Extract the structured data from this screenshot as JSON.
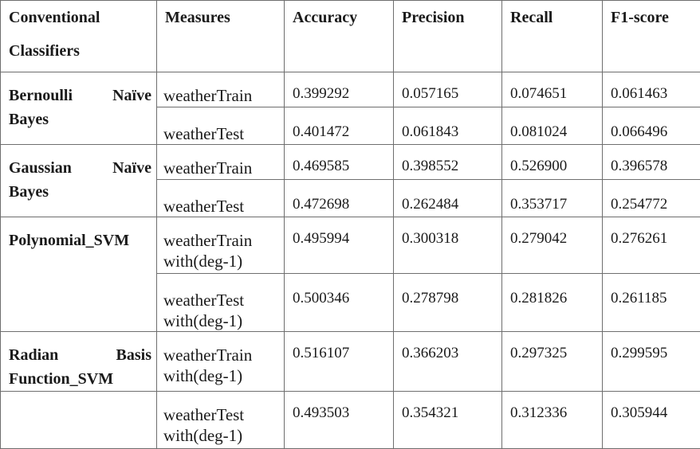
{
  "table": {
    "headers": {
      "classifier": "Conventional Classifiers",
      "classifier_line1": "Conventional",
      "classifier_line2": "Classifiers",
      "measures": "Measures",
      "accuracy": "Accuracy",
      "precision": "Precision",
      "recall": "Recall",
      "f1": "F1-score"
    },
    "groups": [
      {
        "classifier_line1": "Bernoulli Naïve",
        "classifier_word_a": "Bernoulli",
        "classifier_word_b": "Naïve",
        "classifier_line2": "Bayes",
        "rows": [
          {
            "measure": "weatherTrain",
            "measure_line2": "",
            "accuracy": "0.399292",
            "precision": "0.057165",
            "recall": "0.074651",
            "f1": "0.061463"
          },
          {
            "measure": "weatherTest",
            "measure_line2": "",
            "accuracy": "0.401472",
            "precision": "0.061843",
            "recall": "0.081024",
            "f1": "0.066496"
          }
        ]
      },
      {
        "classifier_line1": "Gaussian Naïve",
        "classifier_word_a": "Gaussian",
        "classifier_word_b": "Naïve",
        "classifier_line2": "Bayes",
        "rows": [
          {
            "measure": "weatherTrain",
            "measure_line2": "",
            "accuracy": "0.469585",
            "precision": "0.398552",
            "recall": "0.526900",
            "f1": "0.396578"
          },
          {
            "measure": "weatherTest",
            "measure_line2": "",
            "accuracy": "0.472698",
            "precision": "0.262484",
            "recall": "0.353717",
            "f1": "0.254772"
          }
        ]
      },
      {
        "classifier_line1": "Polynomial_SVM",
        "classifier_line2": "",
        "rows": [
          {
            "measure": "weatherTrain",
            "measure_line2": "with(deg-1)",
            "accuracy": "0.495994",
            "precision": "0.300318",
            "recall": "0.279042",
            "f1": "0.276261"
          },
          {
            "measure": "weatherTest",
            "measure_line2": "with(deg-1)",
            "accuracy": "0.500346",
            "precision": "0.278798",
            "recall": "0.281826",
            "f1": "0.261185"
          }
        ]
      },
      {
        "classifier_word_a": "Radian",
        "classifier_word_b": "Basis",
        "classifier_line2": "Function_SVM",
        "rows": [
          {
            "measure": "weatherTrain",
            "measure_line2": "with(deg-1)",
            "accuracy": "0.516107",
            "precision": "0.366203",
            "recall": "0.297325",
            "f1": "0.299595"
          },
          {
            "measure": "weatherTest",
            "measure_line2": "with(deg-1)",
            "accuracy": "0.493503",
            "precision": "0.354321",
            "recall": "0.312336",
            "f1": "0.305944"
          }
        ]
      }
    ]
  }
}
